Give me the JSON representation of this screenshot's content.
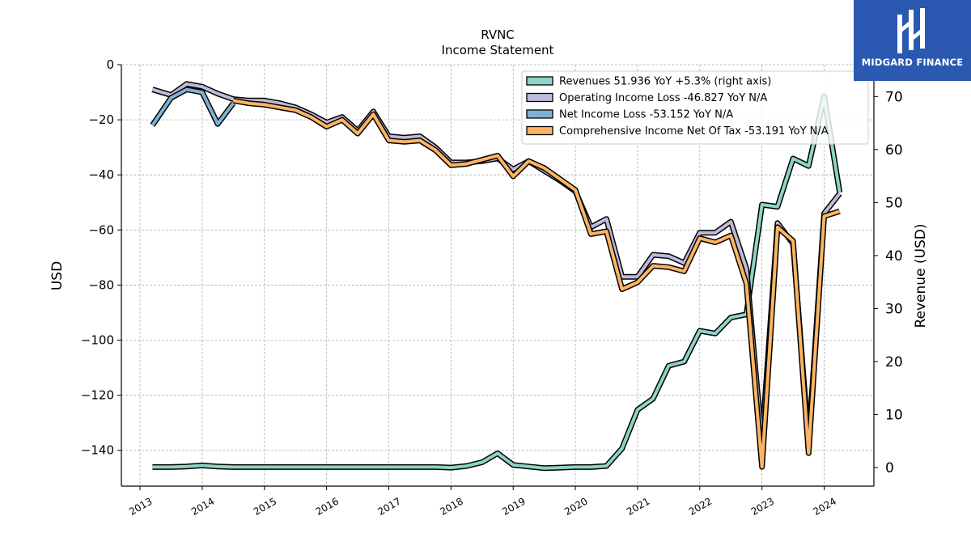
{
  "brand": {
    "name": "MIDGARD FINANCE",
    "color": "#2b58b0"
  },
  "chart_data": {
    "type": "line",
    "title": "RVNC",
    "subtitle": "Income Statement",
    "ylabel": "USD",
    "ylabel_right": "Revenue (USD)",
    "ylim": [
      -153,
      0
    ],
    "ylim_right": [
      -3.5,
      76
    ],
    "xlim": [
      2012.7,
      2024.8
    ],
    "y_ticks": [
      0,
      -20,
      -40,
      -60,
      -80,
      -100,
      -120,
      -140
    ],
    "y_ticks_right": [
      0,
      10,
      20,
      30,
      40,
      50,
      60,
      70
    ],
    "x_ticks": [
      2013,
      2014,
      2015,
      2016,
      2017,
      2018,
      2019,
      2020,
      2021,
      2022,
      2023,
      2024
    ],
    "grid": true,
    "legend_placement": "top-right",
    "x": [
      2013.2,
      2013.5,
      2013.75,
      2014.0,
      2014.25,
      2014.5,
      2014.75,
      2015.0,
      2015.25,
      2015.5,
      2015.75,
      2016.0,
      2016.25,
      2016.5,
      2016.75,
      2017.0,
      2017.25,
      2017.5,
      2017.75,
      2018.0,
      2018.25,
      2018.5,
      2018.75,
      2019.0,
      2019.25,
      2019.5,
      2019.75,
      2020.0,
      2020.25,
      2020.5,
      2020.75,
      2021.0,
      2021.25,
      2021.5,
      2021.75,
      2022.0,
      2022.25,
      2022.5,
      2022.75,
      2023.0,
      2023.25,
      2023.5,
      2023.75,
      2024.0,
      2024.25
    ],
    "series": [
      {
        "name": "Revenues  51.936 YoY +5.3% (right axis)",
        "axis": "right",
        "color": "#8dd3c7",
        "values": [
          0.1,
          0.1,
          0.2,
          0.4,
          0.2,
          0.1,
          0.1,
          0.1,
          0.1,
          0.1,
          0.1,
          0.1,
          0.1,
          0.1,
          0.1,
          0.1,
          0.1,
          0.1,
          0.1,
          0.0,
          0.3,
          1.0,
          2.7,
          0.5,
          0.2,
          -0.1,
          0.0,
          0.1,
          0.1,
          0.3,
          3.6,
          10.9,
          13.0,
          19.2,
          20.0,
          25.8,
          25.3,
          28.3,
          28.9,
          49.6,
          49.2,
          58.3,
          56.9,
          70.0,
          51.9
        ]
      },
      {
        "name": "Operating Income Loss  -46.827 YoY N/A",
        "axis": "left",
        "color": "#bebada",
        "values": [
          -9,
          -11,
          -7,
          -8,
          -10.5,
          -12.5,
          -13,
          -13,
          -14,
          -15.5,
          -18,
          -21,
          -19,
          -24,
          -17,
          -26,
          -26.5,
          -26,
          -30,
          -35.5,
          -35.5,
          -35,
          -34,
          -38,
          -35,
          -38.5,
          -42,
          -46,
          -59,
          -56,
          -77,
          -77,
          -69,
          -69.5,
          -72,
          -61,
          -61,
          -57,
          -74,
          -137,
          -57.5,
          -65,
          -137,
          -54,
          -46.8
        ]
      },
      {
        "name": "Net Income Loss  -53.152 YoY N/A",
        "axis": "left",
        "color": "#80b1d3",
        "values": [
          -22,
          -12,
          -9,
          -10,
          -21.5,
          -14,
          null,
          null,
          null,
          null,
          null,
          null,
          null,
          null,
          null,
          null,
          null,
          null,
          null,
          null,
          null,
          null,
          null,
          null,
          null,
          null,
          null,
          null,
          null,
          null,
          null,
          null,
          null,
          null,
          null,
          null,
          null,
          null,
          null,
          null,
          null,
          null,
          null,
          null,
          -53.2
        ]
      },
      {
        "name": "Comprehensive Income Net Of Tax  -53.191 YoY N/A",
        "axis": "left",
        "color": "#fdb462",
        "values": [
          null,
          null,
          null,
          null,
          null,
          -13,
          -14,
          -14.5,
          -15.5,
          -16.5,
          -19,
          -22.5,
          -20,
          -25,
          -18,
          -27.5,
          -28,
          -27.5,
          -31,
          -36.5,
          -36,
          -34.5,
          -33,
          -40.5,
          -35,
          -37.5,
          -41.5,
          -45.5,
          -61.5,
          -60.5,
          -81.5,
          -79,
          -73,
          -73.5,
          -75,
          -63,
          -64.5,
          -62,
          -79.5,
          -146,
          -59,
          -64,
          -141,
          -55,
          -53.2
        ]
      }
    ]
  }
}
